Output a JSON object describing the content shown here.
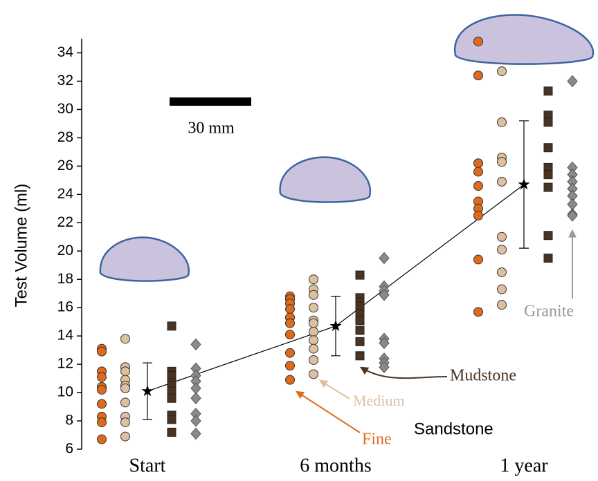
{
  "chart_data": {
    "type": "strip",
    "y_label": "Test Volume (ml)",
    "categories": [
      "Start",
      "6 months",
      "1 year"
    ],
    "ylim": [
      6,
      35
    ],
    "yticks": [
      6,
      8,
      10,
      12,
      14,
      16,
      18,
      20,
      22,
      24,
      26,
      28,
      30,
      32,
      34
    ],
    "series": [
      {
        "name": "Fine",
        "color": "#e06a1c",
        "marker": "circle",
        "values": [
          [
            13.1,
            12.9,
            11.5,
            11.1,
            10.4,
            10.2,
            9.2,
            8.3,
            7.9,
            6.7
          ],
          [
            16.8,
            16.6,
            16.3,
            15.9,
            15.3,
            14.9,
            14.1,
            12.8,
            11.9,
            10.9
          ],
          [
            34.8,
            32.4,
            26.2,
            25.6,
            24.6,
            23.5,
            23.0,
            22.5,
            19.4,
            15.7
          ]
        ]
      },
      {
        "name": "Medium",
        "color": "#dfc09e",
        "marker": "circle",
        "values": [
          [
            13.8,
            11.8,
            11.5,
            10.9,
            10.5,
            10.3,
            9.3,
            8.3,
            7.9,
            6.9
          ],
          [
            18.0,
            17.3,
            16.9,
            16.0,
            15.1,
            14.9,
            14.3,
            13.7,
            13.1,
            12.3,
            11.3
          ],
          [
            32.7,
            29.1,
            26.6,
            26.3,
            24.9,
            21.0,
            20.1,
            18.5,
            17.3,
            16.2
          ]
        ]
      },
      {
        "name": "Mudstone",
        "color": "#4a3421",
        "marker": "square",
        "values": [
          [
            14.7,
            11.5,
            11.2,
            10.7,
            10.5,
            10.1,
            9.6,
            8.4,
            8.1,
            7.2
          ],
          [
            18.3,
            16.7,
            16.4,
            16.1,
            15.6,
            15.1,
            14.4,
            13.6,
            12.6
          ],
          [
            31.3,
            29.6,
            29.1,
            27.3,
            25.9,
            25.4,
            24.5,
            21.1,
            19.5
          ]
        ]
      },
      {
        "name": "Granite",
        "color": "#8a8a8a",
        "marker": "diamond",
        "values": [
          [
            13.4,
            11.7,
            11.2,
            10.8,
            10.3,
            9.6,
            8.5,
            8.0,
            7.1
          ],
          [
            19.5,
            17.5,
            17.2,
            16.9,
            13.8,
            13.5,
            12.4,
            12.1,
            11.8
          ],
          [
            32.0,
            25.9,
            25.4,
            24.9,
            24.4,
            23.9,
            23.3,
            22.6,
            22.5
          ]
        ]
      }
    ],
    "mean": {
      "values": [
        10.1,
        14.7,
        24.7
      ],
      "errors": [
        2.0,
        2.1,
        4.5
      ]
    },
    "annotations": {
      "scale_bar": "30 mm",
      "sandstone": "Sandstone"
    }
  }
}
